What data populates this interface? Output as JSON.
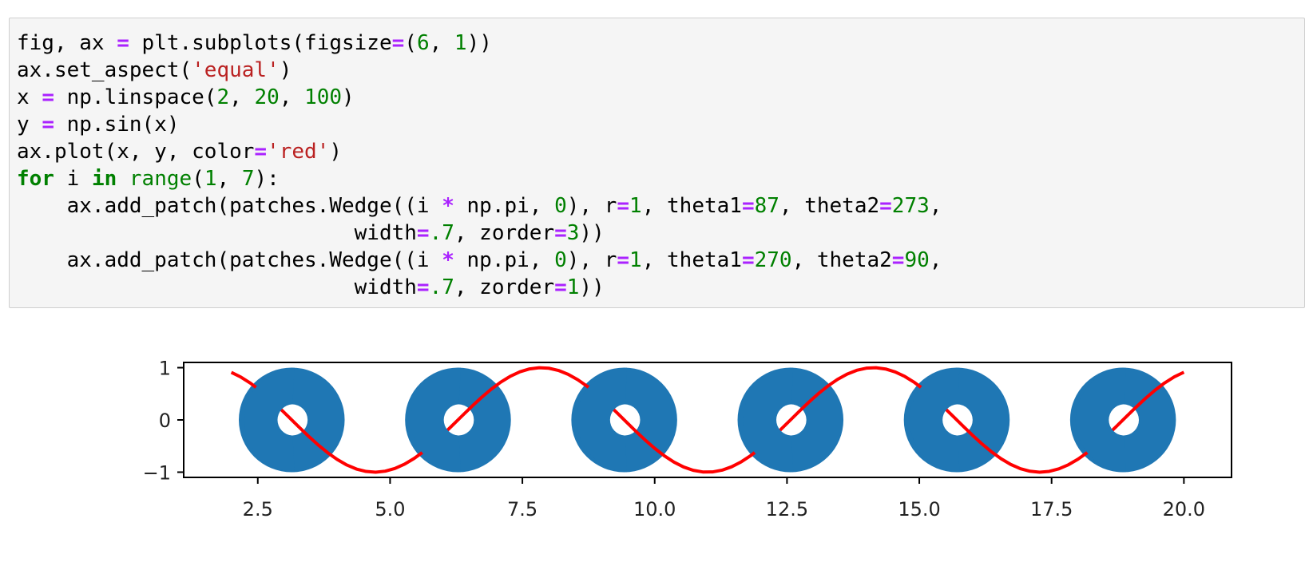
{
  "code_cell": {
    "lines": [
      [
        [
          "plain",
          "fig, ax "
        ],
        [
          "op",
          "="
        ],
        [
          "plain",
          " plt.subplots(figsize"
        ],
        [
          "op",
          "="
        ],
        [
          "plain",
          "("
        ],
        [
          "num",
          "6"
        ],
        [
          "plain",
          ", "
        ],
        [
          "num",
          "1"
        ],
        [
          "plain",
          "))"
        ]
      ],
      [
        [
          "plain",
          "ax.set_aspect("
        ],
        [
          "str",
          "'equal'"
        ],
        [
          "plain",
          ")"
        ]
      ],
      [
        [
          "plain",
          "x "
        ],
        [
          "op",
          "="
        ],
        [
          "plain",
          " np.linspace("
        ],
        [
          "num",
          "2"
        ],
        [
          "plain",
          ", "
        ],
        [
          "num",
          "20"
        ],
        [
          "plain",
          ", "
        ],
        [
          "num",
          "100"
        ],
        [
          "plain",
          ")"
        ]
      ],
      [
        [
          "plain",
          "y "
        ],
        [
          "op",
          "="
        ],
        [
          "plain",
          " np.sin(x)"
        ]
      ],
      [
        [
          "plain",
          "ax.plot(x, y, color"
        ],
        [
          "op",
          "="
        ],
        [
          "str",
          "'red'"
        ],
        [
          "plain",
          ")"
        ]
      ],
      [
        [
          "kw",
          "for"
        ],
        [
          "plain",
          " i "
        ],
        [
          "kw",
          "in"
        ],
        [
          "plain",
          " "
        ],
        [
          "bi",
          "range"
        ],
        [
          "plain",
          "("
        ],
        [
          "num",
          "1"
        ],
        [
          "plain",
          ", "
        ],
        [
          "num",
          "7"
        ],
        [
          "plain",
          "):"
        ]
      ],
      [
        [
          "plain",
          "    ax.add_patch(patches.Wedge((i "
        ],
        [
          "op",
          "*"
        ],
        [
          "plain",
          " np.pi, "
        ],
        [
          "num",
          "0"
        ],
        [
          "plain",
          "), r"
        ],
        [
          "op",
          "="
        ],
        [
          "num",
          "1"
        ],
        [
          "plain",
          ", theta1"
        ],
        [
          "op",
          "="
        ],
        [
          "num",
          "87"
        ],
        [
          "plain",
          ", theta2"
        ],
        [
          "op",
          "="
        ],
        [
          "num",
          "273"
        ],
        [
          "plain",
          ","
        ]
      ],
      [
        [
          "plain",
          "                           width"
        ],
        [
          "op",
          "="
        ],
        [
          "num",
          ".7"
        ],
        [
          "plain",
          ", zorder"
        ],
        [
          "op",
          "="
        ],
        [
          "num",
          "3"
        ],
        [
          "plain",
          "))"
        ]
      ],
      [
        [
          "plain",
          "    ax.add_patch(patches.Wedge((i "
        ],
        [
          "op",
          "*"
        ],
        [
          "plain",
          " np.pi, "
        ],
        [
          "num",
          "0"
        ],
        [
          "plain",
          "), r"
        ],
        [
          "op",
          "="
        ],
        [
          "num",
          "1"
        ],
        [
          "plain",
          ", theta1"
        ],
        [
          "op",
          "="
        ],
        [
          "num",
          "270"
        ],
        [
          "plain",
          ", theta2"
        ],
        [
          "op",
          "="
        ],
        [
          "num",
          "90"
        ],
        [
          "plain",
          ","
        ]
      ],
      [
        [
          "plain",
          "                           width"
        ],
        [
          "op",
          "="
        ],
        [
          "num",
          ".7"
        ],
        [
          "plain",
          ", zorder"
        ],
        [
          "op",
          "="
        ],
        [
          "num",
          "1"
        ],
        [
          "plain",
          "))"
        ]
      ]
    ]
  },
  "chart_data": {
    "type": "line",
    "x_range": [
      2,
      20
    ],
    "num_points": 100,
    "curve": "y = sin(x)",
    "series": [
      {
        "color": "#ff0000",
        "function": "sin"
      }
    ],
    "patches": {
      "type": "wedge-ring",
      "centers_x": [
        3.14159,
        6.28319,
        9.42478,
        12.56637,
        15.70796,
        18.84956
      ],
      "center_y": 0,
      "r": 1,
      "width": 0.7,
      "color": "#1f77b4"
    },
    "xlim": [
      1.1,
      20.9
    ],
    "ylim": [
      -1.1,
      1.1
    ],
    "xticks": [
      2.5,
      5.0,
      7.5,
      10.0,
      12.5,
      15.0,
      17.5,
      20.0
    ],
    "xtick_labels": [
      "2.5",
      "5.0",
      "7.5",
      "10.0",
      "12.5",
      "15.0",
      "17.5",
      "20.0"
    ],
    "yticks": [
      -1,
      0,
      1
    ],
    "ytick_labels": [
      "−1",
      "0",
      "1"
    ],
    "grid": false
  }
}
